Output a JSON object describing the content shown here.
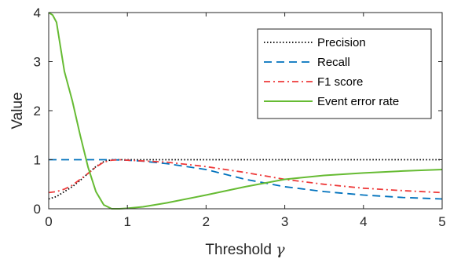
{
  "chart_data": {
    "type": "line",
    "xlabel": "Threshold",
    "xlabel_symbol": "γ",
    "ylabel": "Value",
    "xlim": [
      0,
      5
    ],
    "ylim": [
      0,
      4
    ],
    "xticks": [
      "0",
      "1",
      "2",
      "3",
      "4",
      "5"
    ],
    "yticks": [
      "0",
      "1",
      "2",
      "3",
      "4"
    ],
    "grid": false,
    "legend_position": "top-right",
    "series": [
      {
        "name": "Precision",
        "color": "#000000",
        "style": "dotted",
        "x": [
          0,
          0.1,
          0.2,
          0.3,
          0.4,
          0.5,
          0.6,
          0.7,
          0.8,
          0.9,
          1.0,
          2.0,
          3.0,
          4.0,
          5.0
        ],
        "y": [
          0.2,
          0.25,
          0.35,
          0.45,
          0.58,
          0.72,
          0.86,
          0.96,
          1.0,
          1.0,
          1.0,
          1.0,
          1.0,
          1.0,
          1.0
        ]
      },
      {
        "name": "Recall",
        "color": "#0072BD",
        "style": "dashed",
        "x": [
          0,
          0.5,
          0.8,
          1.0,
          1.2,
          1.5,
          2.0,
          2.5,
          3.0,
          3.5,
          4.0,
          4.5,
          5.0
        ],
        "y": [
          1.0,
          1.0,
          1.0,
          0.99,
          0.97,
          0.92,
          0.8,
          0.6,
          0.45,
          0.35,
          0.28,
          0.23,
          0.2
        ]
      },
      {
        "name": "F1 score",
        "color": "#EE3A3A",
        "style": "dashdot",
        "x": [
          0,
          0.1,
          0.2,
          0.3,
          0.4,
          0.5,
          0.6,
          0.7,
          0.8,
          0.9,
          1.0,
          1.5,
          2.0,
          2.5,
          3.0,
          3.5,
          4.0,
          4.5,
          5.0
        ],
        "y": [
          0.33,
          0.35,
          0.4,
          0.48,
          0.6,
          0.72,
          0.85,
          0.95,
          0.99,
          1.0,
          0.99,
          0.95,
          0.86,
          0.74,
          0.6,
          0.5,
          0.42,
          0.37,
          0.33
        ]
      },
      {
        "name": "Event error rate",
        "color": "#66BB33",
        "style": "solid",
        "x": [
          0,
          0.05,
          0.1,
          0.15,
          0.2,
          0.3,
          0.4,
          0.5,
          0.6,
          0.7,
          0.8,
          0.9,
          1.0,
          1.2,
          1.5,
          2.0,
          2.5,
          3.0,
          3.5,
          4.0,
          4.5,
          5.0
        ],
        "y": [
          4.0,
          3.95,
          3.8,
          3.3,
          2.8,
          2.2,
          1.5,
          0.85,
          0.35,
          0.08,
          0.0,
          0.0,
          0.01,
          0.04,
          0.12,
          0.28,
          0.45,
          0.6,
          0.68,
          0.73,
          0.77,
          0.8
        ]
      }
    ]
  }
}
